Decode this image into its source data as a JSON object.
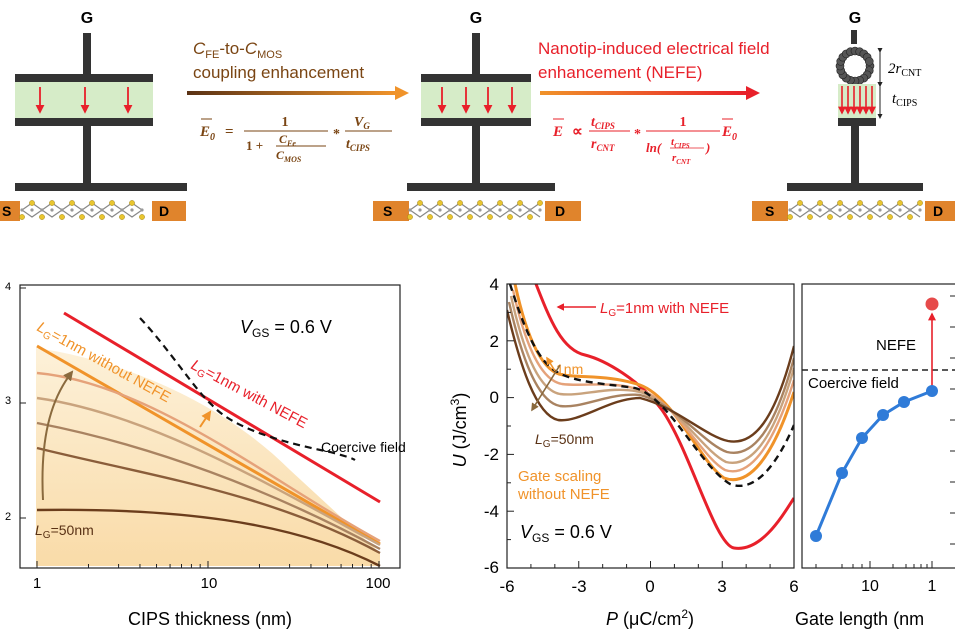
{
  "top": {
    "gate_label": "G",
    "source_label": "S",
    "drain_label": "D",
    "arrow1": {
      "line1_main": "C",
      "line1_sub1": "FE",
      "line1_mid": "-to-",
      "line1_main2": "C",
      "line1_sub2": "MOS",
      "line2": "coupling enhancement"
    },
    "arrow2": {
      "line1": "Nanotip-induced electrical field",
      "line2": "enhancement (NEFE)"
    },
    "eq1": {
      "lhs": "E",
      "lhs_sub": "0",
      "equals": "=",
      "num1": "1",
      "den_one": "1 +",
      "cfe": "C",
      "cfe_sub": "Fe",
      "cmos": "C",
      "cmos_sub": "MOS",
      "times": "*",
      "vg": "V",
      "vg_sub": "G",
      "tc": "t",
      "tc_sub": "CIPS"
    },
    "eq2": {
      "lhs": "E",
      "prop": "∝",
      "tc": "t",
      "tc_sub": "CIPS",
      "rc": "r",
      "rc_sub": "CNT",
      "times": "*",
      "num1": "1",
      "ln": "ln(",
      "ln_close": ")",
      "rhs": "E",
      "rhs_sub": "0"
    },
    "cnt_label": {
      "main": "2r",
      "sub": "CNT"
    },
    "tcips_label": {
      "main": "t",
      "sub": "CIPS"
    }
  },
  "colors": {
    "red": "#e8202a",
    "orange": "#f0932a",
    "brown_dark": "#6b3d1c",
    "green_fill": "#d6ecc8",
    "pad": "#e0842c",
    "shade": "#fbe3b8"
  },
  "chart_data": [
    {
      "type": "line",
      "xlabel": "CIPS thickness (nm)",
      "xscale": "log",
      "xlim": [
        0.85,
        100
      ],
      "xticks": [
        1,
        10,
        100
      ],
      "yscale": "log",
      "yticks_visible": [
        "4",
        "3",
        "2"
      ],
      "annotations": {
        "vgs": {
          "main": "V",
          "sub": "GS",
          "rest": " = 0.6 V"
        },
        "coercive": "Coercive field",
        "with_nefe": {
          "a": "L",
          "b": "G",
          "c": "=1nm with NEFE"
        },
        "without_nefe": {
          "a": "L",
          "b": "G",
          "c": "=1nm without NEFE"
        },
        "lg50": {
          "a": "L",
          "b": "G",
          "c": "=50nm"
        }
      },
      "series": [
        {
          "color": "#e8202a",
          "x": [
            1.5,
            100
          ],
          "y": [
            3.6,
            1.9
          ]
        },
        {
          "color": "#f0932a",
          "x": [
            1,
            100
          ],
          "y": [
            3.47,
            1.78
          ]
        },
        {
          "color": "#e5a27a",
          "x": [
            1,
            100
          ],
          "y": [
            3.33,
            1.75
          ]
        },
        {
          "color": "#c9a37d",
          "x": [
            1,
            100
          ],
          "y": [
            3.17,
            1.73
          ]
        },
        {
          "color": "#a98361",
          "x": [
            1,
            100
          ],
          "y": [
            2.98,
            1.7
          ]
        },
        {
          "color": "#8a5d3a",
          "x": [
            1,
            100
          ],
          "y": [
            2.76,
            1.68
          ]
        },
        {
          "color": "#6b3d1c",
          "x": [
            1,
            100
          ],
          "y": [
            2.45,
            1.65
          ]
        }
      ],
      "coercive_dashed": {
        "x": [
          4,
          5,
          6.5,
          9,
          12,
          18,
          30,
          60
        ],
        "y": [
          3.55,
          3.2,
          2.9,
          2.72,
          2.62,
          2.57,
          2.55,
          2.52
        ]
      }
    },
    {
      "type": "line",
      "xlabel": {
        "a": "P",
        "b": " (μC/cm",
        "c": "2",
        "d": ")"
      },
      "ylabel": {
        "a": "U",
        "b": " (J/cm",
        "c": "3",
        "d": ")"
      },
      "xlim": [
        -6,
        6
      ],
      "ylim": [
        -6,
        4
      ],
      "xticks": [
        "-6",
        "-3",
        "0",
        "3",
        "6"
      ],
      "yticks": [
        "4",
        "2",
        "0",
        "-2",
        "-4",
        "-6"
      ],
      "annotations": {
        "with_nefe": {
          "a": "L",
          "b": "G",
          "c": "=1nm with NEFE"
        },
        "nm1": "1nm",
        "lg50": {
          "a": "L",
          "b": "G",
          "c": "=50nm"
        },
        "gate_scaling": "Gate scaling",
        "without_nefe": "without NEFE",
        "vgs": {
          "main": "V",
          "sub": "GS",
          "rest": " = 0.6 V"
        }
      },
      "series": [
        {
          "color": "#e8202a",
          "a": 0.6,
          "b": -0.45,
          "c": 0.0105,
          "d": 0.2
        },
        {
          "color": "#f0932a",
          "a": 0.55,
          "b": -0.3,
          "c": 0.0085,
          "d": 0.1
        },
        {
          "color": "#e5a27a",
          "a": 0.5,
          "b": -0.28,
          "c": 0.0082,
          "d": 0.1
        },
        {
          "color": "#c9a37d",
          "a": 0.45,
          "b": -0.26,
          "c": 0.008,
          "d": 0.1
        },
        {
          "color": "#a98361",
          "a": 0.4,
          "b": -0.24,
          "c": 0.0078,
          "d": 0.1
        },
        {
          "color": "#6b3d1c",
          "a": 0.35,
          "b": -0.22,
          "c": 0.0076,
          "d": 0.1
        }
      ]
    },
    {
      "type": "scatter",
      "xlabel": "Gate length (nm",
      "xticks": [
        "10",
        "1"
      ],
      "annotations": {
        "nefe": "NEFE",
        "coercive": "Coercive field"
      },
      "blue_points": {
        "x": [
          5,
          9.5,
          14,
          20,
          28,
          40,
          53
        ],
        "y": [
          0.08,
          0.38,
          0.53,
          0.64,
          0.72,
          0.76,
          0.8
        ]
      },
      "red_point": {
        "x": 53,
        "y": 1.84
      },
      "coercive_y": 0.95
    }
  ]
}
